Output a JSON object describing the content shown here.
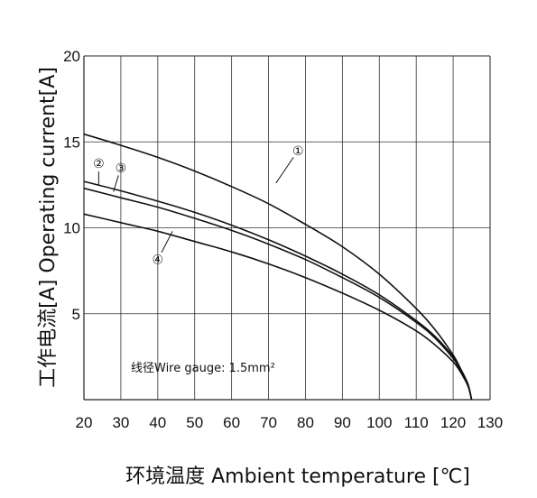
{
  "chart_data": {
    "type": "line",
    "title": "",
    "xlabel": "环境温度 Ambient temperature [℃]",
    "ylabel": "工作电流[A]  Operating current[A]",
    "xlim": [
      20,
      130
    ],
    "ylim": [
      0,
      20
    ],
    "x_ticks": [
      20,
      30,
      40,
      50,
      60,
      70,
      80,
      90,
      100,
      110,
      120,
      130
    ],
    "y_ticks": [
      5,
      10,
      15,
      20
    ],
    "grid": true,
    "annotation": "线径Wire gauge: 1.5mm²",
    "series": [
      {
        "name": "①",
        "x": [
          20,
          30,
          40,
          50,
          60,
          70,
          80,
          90,
          100,
          110,
          115,
          120,
          122,
          124,
          125
        ],
        "y": [
          15.45,
          14.8,
          14.1,
          13.3,
          12.4,
          11.4,
          10.2,
          8.9,
          7.3,
          5.3,
          4.1,
          2.6,
          1.8,
          0.9,
          0.0
        ]
      },
      {
        "name": "②",
        "x": [
          20,
          30,
          40,
          50,
          60,
          70,
          80,
          90,
          100,
          110,
          115,
          120,
          122,
          124,
          125
        ],
        "y": [
          12.7,
          12.15,
          11.55,
          10.9,
          10.15,
          9.3,
          8.35,
          7.3,
          6.1,
          4.6,
          3.7,
          2.5,
          1.8,
          0.9,
          0.0
        ]
      },
      {
        "name": "③",
        "x": [
          20,
          30,
          40,
          50,
          60,
          70,
          80,
          90,
          100,
          110,
          115,
          120,
          122,
          124,
          125
        ],
        "y": [
          12.3,
          11.75,
          11.2,
          10.55,
          9.85,
          9.05,
          8.15,
          7.1,
          5.95,
          4.5,
          3.6,
          2.4,
          1.7,
          0.85,
          0.0
        ]
      },
      {
        "name": "④",
        "x": [
          20,
          30,
          40,
          50,
          60,
          70,
          80,
          90,
          100,
          110,
          115,
          120,
          122,
          124,
          125
        ],
        "y": [
          10.8,
          10.3,
          9.8,
          9.2,
          8.6,
          7.9,
          7.1,
          6.2,
          5.2,
          4.0,
          3.2,
          2.2,
          1.6,
          0.8,
          0.0
        ]
      }
    ],
    "labels": [
      {
        "text": "①",
        "x": 78,
        "y": 14.5,
        "leader_to": {
          "x": 72,
          "y": 12.6
        }
      },
      {
        "text": "②",
        "x": 24,
        "y": 13.75,
        "leader_to": {
          "x": 24,
          "y": 12.5
        }
      },
      {
        "text": "③",
        "x": 30,
        "y": 13.5,
        "leader_to": {
          "x": 28,
          "y": 12.1
        }
      },
      {
        "text": "④",
        "x": 40,
        "y": 8.15,
        "leader_to": {
          "x": 44,
          "y": 9.8
        }
      }
    ]
  }
}
